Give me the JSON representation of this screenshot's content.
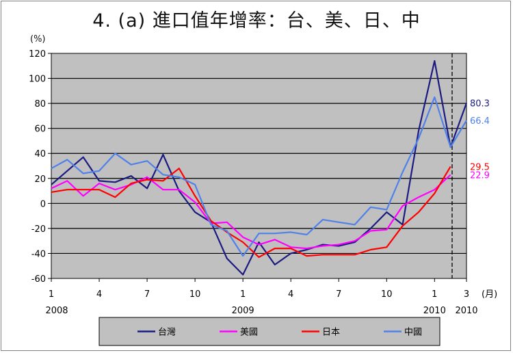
{
  "title": "4. (a)  進口值年增率：台、美、日、中",
  "chart_data": {
    "type": "line",
    "unit_label": "(%)",
    "month_unit": "(月)",
    "ylim": [
      -60,
      120
    ],
    "yticks": [
      -60,
      -40,
      -20,
      0,
      20,
      40,
      60,
      80,
      100,
      120
    ],
    "x_tick_labels": [
      {
        "i": 0,
        "label": "1",
        "year": "2008"
      },
      {
        "i": 3,
        "label": "4",
        "year": ""
      },
      {
        "i": 6,
        "label": "7",
        "year": ""
      },
      {
        "i": 9,
        "label": "10",
        "year": ""
      },
      {
        "i": 12,
        "label": "1",
        "year": "2009"
      },
      {
        "i": 15,
        "label": "4",
        "year": ""
      },
      {
        "i": 18,
        "label": "7",
        "year": ""
      },
      {
        "i": 21,
        "label": "10",
        "year": ""
      },
      {
        "i": 24,
        "label": "1",
        "year": "2010"
      },
      {
        "i": 26,
        "label": "3",
        "year": "2010"
      }
    ],
    "n_points": 27,
    "divider_at": 25,
    "series": [
      {
        "name": "台灣",
        "color": "#1a1a80",
        "end_label": "80.3",
        "values": [
          15,
          26,
          37,
          18,
          17,
          22,
          12,
          39,
          10,
          -7,
          -15,
          -44,
          -57,
          -31,
          -49,
          -40,
          -37,
          -33,
          -34,
          -31,
          -20,
          -7,
          -17,
          58,
          114,
          45,
          80.3
        ]
      },
      {
        "name": "美國",
        "color": "#ff00ff",
        "end_label": "22.9",
        "values": [
          12,
          18,
          6,
          16,
          11,
          15,
          21,
          11,
          11,
          1,
          -16,
          -15,
          -27,
          -33,
          -29,
          -35,
          -36,
          -34,
          -33,
          -30,
          -22,
          -21,
          -2,
          5,
          11,
          22.9,
          null
        ]
      },
      {
        "name": "日本",
        "color": "#ff0000",
        "end_label": "29.5",
        "values": [
          9,
          11,
          11,
          11,
          5,
          16,
          19,
          18,
          28,
          6,
          -14,
          -23,
          -31,
          -43,
          -36,
          -36,
          -42,
          -41,
          -41,
          -41,
          -37,
          -35,
          -18,
          -7,
          8,
          29.5,
          null
        ]
      },
      {
        "name": "中國",
        "color": "#4f81e8",
        "end_label": "66.4",
        "values": [
          28,
          35,
          24,
          26,
          40,
          31,
          34,
          23,
          21,
          15,
          -17,
          -22,
          -42,
          -24,
          -24,
          -23,
          -25,
          -13,
          -15,
          -17,
          -3,
          -5,
          25,
          52,
          85,
          45,
          66.4
        ]
      }
    ]
  }
}
